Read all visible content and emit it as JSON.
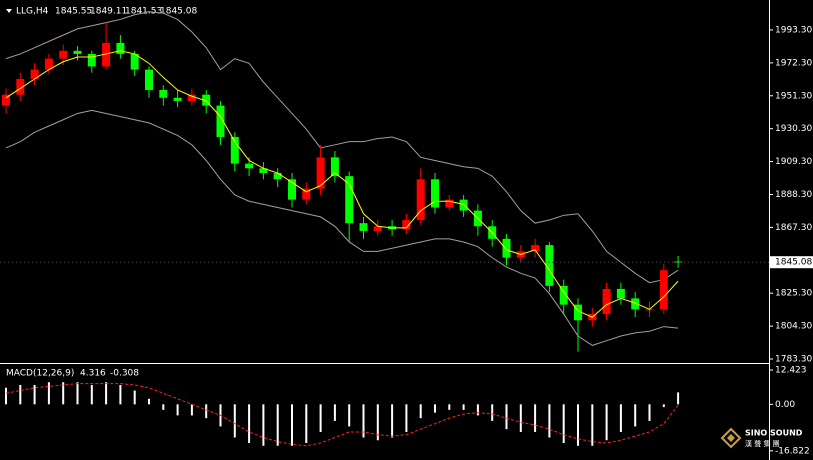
{
  "chart_data": [
    {
      "type": "candlestick",
      "title": "LLG,H4",
      "open": [
        1945,
        1952,
        1962,
        1968,
        1975,
        1980,
        1978,
        1970,
        1985,
        1978,
        1968,
        1955,
        1950,
        1948,
        1952,
        1945,
        1925,
        1908,
        1905,
        1902,
        1898,
        1885,
        1892,
        1912,
        1900,
        1870,
        1865,
        1868,
        1866,
        1872,
        1898,
        1880,
        1885,
        1878,
        1868,
        1860,
        1848,
        1852,
        1856,
        1830,
        1818,
        1808,
        1812,
        1828,
        1822,
        1815,
        1815,
        1845.55
      ],
      "high": [
        1956,
        1966,
        1972,
        1978,
        1984,
        1983,
        1980,
        1998,
        1990,
        1980,
        1970,
        1958,
        1955,
        1956,
        1955,
        1948,
        1928,
        1912,
        1909,
        1905,
        1902,
        1896,
        1920,
        1916,
        1903,
        1874,
        1872,
        1872,
        1876,
        1905,
        1902,
        1888,
        1888,
        1882,
        1872,
        1863,
        1856,
        1860,
        1858,
        1834,
        1822,
        1816,
        1832,
        1832,
        1826,
        1820,
        1844,
        1849.11
      ],
      "low": [
        1940,
        1948,
        1958,
        1965,
        1971,
        1974,
        1966,
        1968,
        1975,
        1964,
        1950,
        1945,
        1944,
        1945,
        1940,
        1920,
        1903,
        1900,
        1898,
        1893,
        1880,
        1882,
        1888,
        1896,
        1858,
        1860,
        1862,
        1862,
        1863,
        1869,
        1876,
        1878,
        1874,
        1862,
        1855,
        1843,
        1845,
        1848,
        1826,
        1812,
        1788,
        1804,
        1808,
        1818,
        1810,
        1810,
        1812,
        1841.53
      ],
      "close": [
        1952,
        1962,
        1968,
        1975,
        1980,
        1978,
        1970,
        1985,
        1978,
        1968,
        1955,
        1950,
        1948,
        1952,
        1945,
        1925,
        1908,
        1905,
        1902,
        1898,
        1885,
        1892,
        1912,
        1900,
        1870,
        1865,
        1868,
        1866,
        1872,
        1898,
        1880,
        1885,
        1878,
        1868,
        1860,
        1848,
        1852,
        1856,
        1830,
        1818,
        1808,
        1812,
        1828,
        1822,
        1815,
        1815,
        1840,
        1845.08
      ],
      "up_color": "#ff0000",
      "down_color": "#00ff00",
      "bands": {
        "color": "#a0a0a0",
        "upper": [
          1975,
          1978,
          1982,
          1986,
          1990,
          1994,
          1996,
          1998,
          2000,
          2003,
          2005,
          2004,
          2000,
          1992,
          1982,
          1968,
          1975,
          1972,
          1960,
          1950,
          1940,
          1930,
          1918,
          1920,
          1922,
          1922,
          1924,
          1925,
          1922,
          1912,
          1910,
          1908,
          1906,
          1905,
          1900,
          1890,
          1878,
          1870,
          1872,
          1875,
          1876,
          1865,
          1852,
          1845,
          1838,
          1832,
          1834,
          1840
        ],
        "lower": [
          1918,
          1922,
          1928,
          1932,
          1936,
          1940,
          1942,
          1940,
          1938,
          1936,
          1934,
          1930,
          1926,
          1920,
          1910,
          1898,
          1888,
          1884,
          1882,
          1880,
          1878,
          1876,
          1874,
          1868,
          1858,
          1852,
          1852,
          1854,
          1856,
          1858,
          1860,
          1860,
          1858,
          1855,
          1848,
          1842,
          1838,
          1835,
          1825,
          1812,
          1798,
          1792,
          1795,
          1798,
          1800,
          1801,
          1804,
          1803
        ]
      },
      "ma": {
        "color": "#ffff00",
        "values": [
          1950,
          1956,
          1962,
          1968,
          1973,
          1976,
          1976,
          1978,
          1980,
          1978,
          1972,
          1963,
          1955,
          1951,
          1948,
          1938,
          1922,
          1910,
          1905,
          1902,
          1896,
          1890,
          1894,
          1902,
          1895,
          1876,
          1868,
          1867,
          1867,
          1878,
          1884,
          1884,
          1882,
          1873,
          1864,
          1853,
          1850,
          1853,
          1840,
          1826,
          1814,
          1810,
          1818,
          1822,
          1819,
          1815,
          1823,
          1833
        ]
      },
      "ylim": [
        1781.4,
        2010.5
      ],
      "yticks": [
        {
          "value": 1993.3,
          "label": "1993.30"
        },
        {
          "value": 1972.3,
          "label": "1972.30"
        },
        {
          "value": 1951.3,
          "label": "1951.30"
        },
        {
          "value": 1930.3,
          "label": "1930.30"
        },
        {
          "value": 1909.3,
          "label": "1909.30"
        },
        {
          "value": 1888.3,
          "label": "1888.30"
        },
        {
          "value": 1867.3,
          "label": "1867.30"
        },
        {
          "value": 1825.3,
          "label": "1825.30"
        },
        {
          "value": 1804.3,
          "label": "1804.30"
        },
        {
          "value": 1783.3,
          "label": "1783.30"
        }
      ]
    },
    {
      "type": "macd",
      "title": "MACD(12,26,9)",
      "histogram": {
        "color": "#ffffff",
        "values": [
          6,
          7,
          7,
          8,
          8,
          8,
          7,
          8,
          7,
          5,
          2,
          -2,
          -4,
          -4,
          -5,
          -8,
          -12,
          -14,
          -15,
          -15,
          -15,
          -14,
          -10,
          -6,
          -8,
          -12,
          -13,
          -12,
          -10,
          -5,
          -3,
          -2,
          -2,
          -4,
          -6,
          -9,
          -10,
          -10,
          -12,
          -14,
          -15,
          -15,
          -13,
          -10,
          -8,
          -6,
          -1,
          4.316
        ]
      },
      "signal": {
        "color": "#ff2020",
        "values": [
          4,
          5,
          6,
          6.5,
          7,
          7.5,
          7.5,
          7.5,
          7.5,
          7,
          6,
          4,
          2,
          0,
          -2,
          -4,
          -7,
          -10,
          -12,
          -13.5,
          -14.5,
          -15,
          -14,
          -12,
          -10,
          -10,
          -11,
          -11.5,
          -11,
          -9,
          -7,
          -5,
          -3.5,
          -3,
          -3.5,
          -5,
          -6.5,
          -7.5,
          -9,
          -11,
          -12.5,
          -13.5,
          -14,
          -13,
          -11.5,
          -10,
          -7,
          -0.308
        ]
      },
      "ylim": [
        -18.7,
        14.6
      ],
      "yticks": [
        12.423,
        {
          "value": 0,
          "label": "0.00"
        },
        -16.822
      ]
    }
  ],
  "logo": {
    "name": "SINO SOUND",
    "subtitle": "漢 聲 集 團"
  }
}
